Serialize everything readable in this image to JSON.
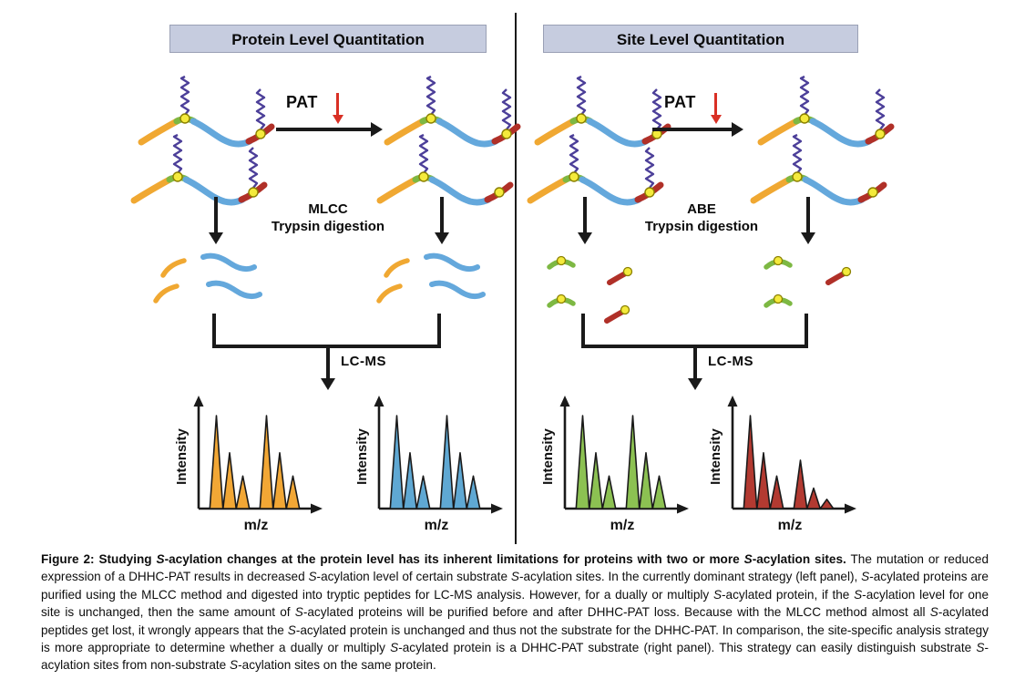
{
  "figure": {
    "panels": [
      {
        "title": "Protein Level Quantitation",
        "pat_label": "PAT",
        "digestion_line1": "MLCC",
        "digestion_line2": "Trypsin digestion",
        "lcms_label": "LC-MS",
        "proteins_before": [
          {
            "site1_acyl": true,
            "site2_acyl": true
          },
          {
            "site1_acyl": true,
            "site2_acyl": true
          }
        ],
        "proteins_after": [
          {
            "site1_acyl": true,
            "site2_acyl": true
          },
          {
            "site1_acyl": true,
            "site2_acyl": false
          }
        ]
      },
      {
        "title": "Site Level Quantitation",
        "pat_label": "PAT",
        "digestion_line1": "ABE",
        "digestion_line2": "Trypsin digestion",
        "lcms_label": "LC-MS",
        "proteins_before": [
          {
            "site1_acyl": true,
            "site2_acyl": true
          },
          {
            "site1_acyl": true,
            "site2_acyl": true
          }
        ],
        "proteins_after": [
          {
            "site1_acyl": true,
            "site2_acyl": true
          },
          {
            "site1_acyl": true,
            "site2_acyl": false
          }
        ]
      }
    ],
    "caption_segments": [
      {
        "t": "Figure 2: Studying ",
        "b": true
      },
      {
        "t": "S",
        "b": true,
        "i": true
      },
      {
        "t": "-acylation changes at the protein level has its inherent limitations for proteins with two or more ",
        "b": true
      },
      {
        "t": "S",
        "b": true,
        "i": true
      },
      {
        "t": "-acylation sites.",
        "b": true
      },
      {
        "t": " The mutation or reduced expression of a DHHC-PAT results in decreased "
      },
      {
        "t": "S",
        "i": true
      },
      {
        "t": "-acylation level of certain substrate "
      },
      {
        "t": "S",
        "i": true
      },
      {
        "t": "-acylation sites. In the currently dominant strategy (left panel), "
      },
      {
        "t": "S",
        "i": true
      },
      {
        "t": "-acylated proteins are purified using the MLCC method and digested into tryptic peptides for LC-MS analysis. However, for a dually or multiply "
      },
      {
        "t": "S",
        "i": true
      },
      {
        "t": "-acylated protein, if the "
      },
      {
        "t": "S",
        "i": true
      },
      {
        "t": "-acylation level for one site is unchanged, then the same amount of "
      },
      {
        "t": "S",
        "i": true
      },
      {
        "t": "-acylated proteins will be purified before and after DHHC-PAT loss. Because with the MLCC method almost all "
      },
      {
        "t": "S",
        "i": true
      },
      {
        "t": "-acylated peptides get lost, it wrongly appears that the "
      },
      {
        "t": "S",
        "i": true
      },
      {
        "t": "-acylated protein is unchanged and thus not the substrate for the DHHC-PAT. In comparison, the site-specific analysis strategy is more appropriate to determine whether a dually or multiply "
      },
      {
        "t": "S",
        "i": true
      },
      {
        "t": "-acylated protein is a DHHC-PAT substrate (right panel). This strategy can easily distinguish substrate "
      },
      {
        "t": "S",
        "i": true
      },
      {
        "t": "-acylation sites from non-substrate "
      },
      {
        "t": "S",
        "i": true
      },
      {
        "t": "-acylation sites on the same protein."
      }
    ]
  },
  "chart_data": [
    {
      "type": "area",
      "id": "spectrum-protein-level-before",
      "color": "#F2A735",
      "xlabel": "m/z",
      "ylabel": "Intensity",
      "peak_groups": [
        [
          1.0,
          0.6,
          0.35
        ],
        [
          1.0,
          0.6,
          0.35
        ]
      ]
    },
    {
      "type": "area",
      "id": "spectrum-protein-level-after",
      "color": "#5FA8D3",
      "xlabel": "m/z",
      "ylabel": "Intensity",
      "peak_groups": [
        [
          1.0,
          0.6,
          0.35
        ],
        [
          1.0,
          0.6,
          0.35
        ]
      ]
    },
    {
      "type": "area",
      "id": "spectrum-site-level-before",
      "color": "#8CC152",
      "xlabel": "m/z",
      "ylabel": "Intensity",
      "peak_groups": [
        [
          1.0,
          0.6,
          0.35
        ],
        [
          1.0,
          0.6,
          0.35
        ]
      ]
    },
    {
      "type": "area",
      "id": "spectrum-site-level-after",
      "color": "#B33A31",
      "xlabel": "m/z",
      "ylabel": "Intensity",
      "peak_groups": [
        [
          1.0,
          0.6,
          0.35
        ],
        [
          0.52,
          0.22,
          0.1
        ]
      ]
    }
  ],
  "colors": {
    "header_bg": "#C6CCDF",
    "header_border": "#9AA0B5",
    "divider": "#1A1A1A",
    "arrow": "#1A1A1A",
    "pat_arrow_red": "#D93025",
    "segment_yellow": "#F0A832",
    "segment_green": "#7DB843",
    "segment_blue": "#64A8DC",
    "segment_red": "#B03028",
    "acyl_circle": "#F4EA3C",
    "acyl_circle_border": "#8B8000",
    "lipid_zigzag": "#4C3F99"
  }
}
